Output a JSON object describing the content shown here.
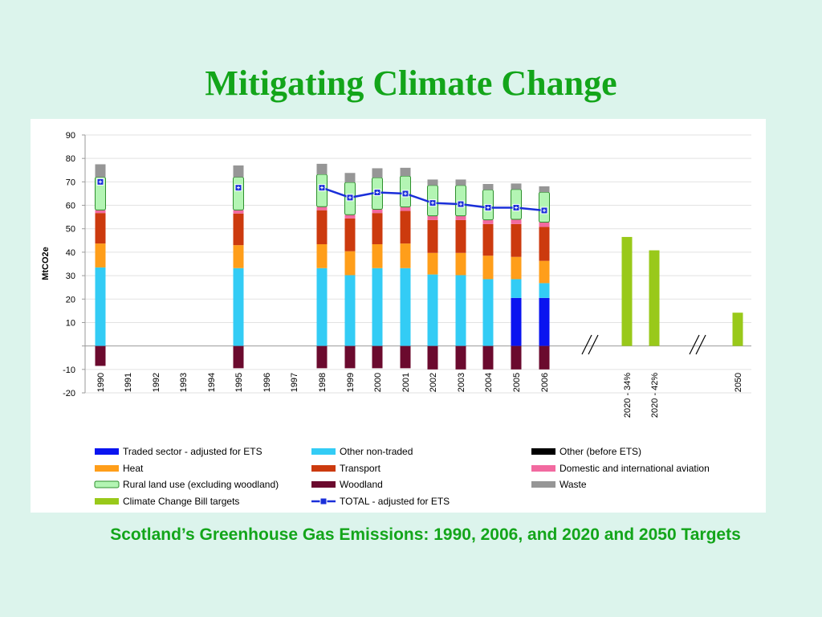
{
  "slide": {
    "title": "Mitigating Climate Change",
    "caption": "Scotland’s Greenhouse Gas Emissions: 1990, 2006, and 2020 and 2050 Targets"
  },
  "colors": {
    "traded": "#0a14f0",
    "other_non_traded": "#33ccf5",
    "other_before_ets": "#000000",
    "heat": "#ff9e1a",
    "transport": "#cc3a0e",
    "aviation": "#f26aa0",
    "rural_fill": "#b3f5b3",
    "rural_border": "#2d8f2d",
    "woodland": "#6b0a2e",
    "waste": "#969696",
    "targets": "#99c91a",
    "total": "#1a2fd9",
    "title": "#13a51a"
  },
  "chart_data": {
    "type": "bar",
    "ylabel": "MtCO2e",
    "ylim": [
      -20,
      90
    ],
    "yticks": [
      -20,
      -10,
      0,
      10,
      20,
      30,
      40,
      50,
      60,
      70,
      80,
      90
    ],
    "grid": true,
    "legend": "bottom",
    "categories": [
      "1990",
      "1991",
      "1992",
      "1993",
      "1994",
      "1995",
      "1996",
      "1997",
      "1998",
      "1999",
      "2000",
      "2001",
      "2002",
      "2003",
      "2004",
      "2005",
      "2006",
      "2020 - 34%",
      "2020 - 42%",
      "2050"
    ],
    "axis_breaks": [
      "after 2006",
      "between 2020 - 42% and 2050"
    ],
    "series": [
      {
        "name": "Traded sector - adjusted for ETS",
        "key": "traded",
        "values": [
          0,
          null,
          null,
          null,
          null,
          0,
          null,
          null,
          0,
          0,
          0,
          0,
          0,
          0,
          0,
          20.5,
          20.5,
          null,
          null,
          null
        ]
      },
      {
        "name": "Other non-traded",
        "key": "other_non_traded",
        "values": [
          33.5,
          null,
          null,
          null,
          null,
          33.2,
          null,
          null,
          33.2,
          30.2,
          33.2,
          33.2,
          30.5,
          30.2,
          28.5,
          8.0,
          6.3,
          null,
          null,
          null
        ]
      },
      {
        "name": "Other (before ETS)",
        "key": "other_before_ets",
        "values": [
          0,
          null,
          null,
          null,
          null,
          0,
          null,
          null,
          0,
          0,
          0,
          0,
          0,
          0,
          0,
          0,
          0,
          null,
          null,
          null
        ]
      },
      {
        "name": "Heat",
        "key": "heat",
        "values": [
          10.2,
          null,
          null,
          null,
          null,
          9.8,
          null,
          null,
          10.2,
          10.2,
          10.2,
          10.5,
          9.2,
          9.5,
          10.0,
          9.5,
          9.5,
          null,
          null,
          null
        ]
      },
      {
        "name": "Transport",
        "key": "transport",
        "values": [
          13.0,
          null,
          null,
          null,
          null,
          13.5,
          null,
          null,
          14.5,
          14.0,
          13.3,
          13.9,
          14.0,
          14.0,
          13.5,
          14.0,
          14.5,
          null,
          null,
          null
        ]
      },
      {
        "name": "Domestic and international aviation",
        "key": "aviation",
        "values": [
          1.3,
          null,
          null,
          null,
          null,
          1.5,
          null,
          null,
          1.5,
          1.6,
          1.6,
          1.7,
          1.8,
          1.8,
          1.8,
          2.0,
          2.0,
          null,
          null,
          null
        ]
      },
      {
        "name": "Rural land use (excluding woodland)",
        "key": "rural",
        "values": [
          14.0,
          null,
          null,
          null,
          null,
          14.0,
          null,
          null,
          13.8,
          13.8,
          13.5,
          13.2,
          13.0,
          13.0,
          12.8,
          12.8,
          12.8,
          null,
          null,
          null
        ]
      },
      {
        "name": "Woodland",
        "key": "woodland",
        "values": [
          -8.5,
          null,
          null,
          null,
          null,
          -9.5,
          null,
          null,
          -9.5,
          -9.5,
          -9.5,
          -9.5,
          -10.0,
          -10.0,
          -10.0,
          -10.0,
          -10.0,
          null,
          null,
          null
        ]
      },
      {
        "name": "Waste",
        "key": "waste",
        "values": [
          5.5,
          null,
          null,
          null,
          null,
          5.0,
          null,
          null,
          4.5,
          4.0,
          4.0,
          3.5,
          2.5,
          2.5,
          2.5,
          2.5,
          2.5,
          null,
          null,
          null
        ]
      },
      {
        "name": "Climate Change Bill targets",
        "key": "targets",
        "values": [
          null,
          null,
          null,
          null,
          null,
          null,
          null,
          null,
          null,
          null,
          null,
          null,
          null,
          null,
          null,
          null,
          null,
          46.5,
          40.8,
          14.2
        ]
      },
      {
        "name": "TOTAL - adjusted for ETS",
        "key": "total",
        "type": "line",
        "values": [
          70.0,
          null,
          null,
          null,
          null,
          67.5,
          null,
          null,
          67.5,
          63.3,
          65.5,
          65.0,
          61.0,
          60.5,
          59.0,
          59.0,
          57.8,
          null,
          null,
          null
        ]
      }
    ]
  }
}
